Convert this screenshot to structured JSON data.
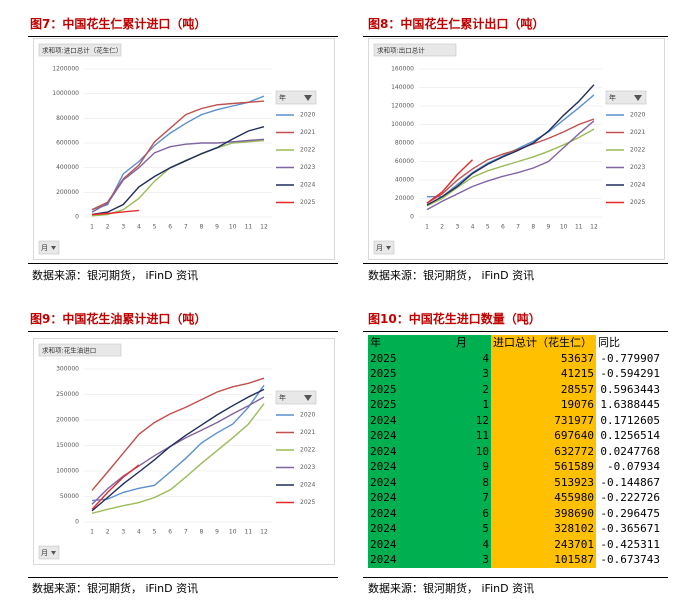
{
  "chart_data": [
    {
      "type": "line",
      "title": "图7：中国花生仁累计进口（吨）",
      "pivot_label": "求和项:进口总计（花生仁）",
      "legend_title": "年",
      "x_filter": "月",
      "source": "数据来源：银河期货， iFinD 资讯",
      "categories": [
        "1",
        "2",
        "3",
        "4",
        "5",
        "6",
        "7",
        "8",
        "9",
        "10",
        "11",
        "12"
      ],
      "ylim": [
        0,
        1200000
      ],
      "yticks": [
        0,
        200000,
        400000,
        600000,
        800000,
        1000000,
        1200000
      ],
      "series": [
        {
          "name": "2020",
          "color": "#5b8fd0",
          "values": [
            60000,
            100000,
            350000,
            450000,
            580000,
            680000,
            760000,
            830000,
            870000,
            900000,
            930000,
            980000
          ]
        },
        {
          "name": "2021",
          "color": "#c0504d",
          "values": [
            60000,
            120000,
            310000,
            420000,
            610000,
            720000,
            830000,
            880000,
            910000,
            920000,
            930000,
            940000
          ]
        },
        {
          "name": "2022",
          "color": "#9bbb59",
          "values": [
            10000,
            20000,
            60000,
            150000,
            290000,
            400000,
            460000,
            510000,
            560000,
            600000,
            610000,
            620000
          ]
        },
        {
          "name": "2023",
          "color": "#8064a2",
          "values": [
            40000,
            110000,
            300000,
            400000,
            520000,
            570000,
            590000,
            600000,
            600000,
            610000,
            620000,
            630000
          ]
        },
        {
          "name": "2024",
          "color": "#1f2d5c",
          "values": [
            20000,
            40000,
            101587,
            243701,
            328102,
            398690,
            455980,
            513923,
            561589,
            632772,
            697640,
            731977
          ]
        },
        {
          "name": "2025",
          "color": "#e8282b",
          "values": [
            19076,
            28557,
            41215,
            53637,
            null,
            null,
            null,
            null,
            null,
            null,
            null,
            null
          ]
        }
      ]
    },
    {
      "type": "line",
      "title": "图8：中国花生仁累计出口（吨）",
      "pivot_label": "求和项:出口总计",
      "legend_title": "年",
      "x_filter": "月",
      "source": "数据来源：银河期货， iFinD 资讯",
      "categories": [
        "1",
        "2",
        "3",
        "4",
        "5",
        "6",
        "7",
        "8",
        "9",
        "10",
        "11",
        "12"
      ],
      "ylim": [
        0,
        160000
      ],
      "yticks": [
        0,
        20000,
        40000,
        60000,
        80000,
        100000,
        120000,
        140000,
        160000
      ],
      "series": [
        {
          "name": "2020",
          "color": "#5b8fd0",
          "values": [
            22000,
            22000,
            35000,
            48000,
            58000,
            66000,
            74000,
            82000,
            92000,
            105000,
            118000,
            132000
          ]
        },
        {
          "name": "2021",
          "color": "#c0504d",
          "values": [
            15000,
            25000,
            40000,
            52000,
            62000,
            68000,
            73000,
            79000,
            85000,
            92000,
            100000,
            106000
          ]
        },
        {
          "name": "2022",
          "color": "#9bbb59",
          "values": [
            12000,
            20000,
            32000,
            43000,
            50000,
            55000,
            60000,
            65000,
            71000,
            78000,
            86000,
            95000
          ]
        },
        {
          "name": "2023",
          "color": "#8064a2",
          "values": [
            8000,
            17000,
            25000,
            33000,
            39000,
            44000,
            48000,
            53000,
            60000,
            75000,
            90000,
            104000
          ]
        },
        {
          "name": "2024",
          "color": "#1f2d5c",
          "values": [
            13000,
            22000,
            33000,
            47000,
            57000,
            65000,
            72000,
            80000,
            93000,
            110000,
            125000,
            143000
          ]
        },
        {
          "name": "2025",
          "color": "#e8282b",
          "values": [
            15000,
            27000,
            46000,
            62000,
            null,
            null,
            null,
            null,
            null,
            null,
            null,
            null
          ]
        }
      ]
    },
    {
      "type": "line",
      "title": "图9：中国花生油累计进口（吨）",
      "pivot_label": "求和项:花生油进口",
      "legend_title": "年",
      "x_filter": "月",
      "source": "数据来源：银河期货， iFinD 资讯",
      "categories": [
        "1",
        "2",
        "3",
        "4",
        "5",
        "6",
        "7",
        "8",
        "9",
        "10",
        "11",
        "12"
      ],
      "ylim": [
        0,
        300000
      ],
      "yticks": [
        0,
        50000,
        100000,
        150000,
        200000,
        250000,
        300000
      ],
      "series": [
        {
          "name": "2020",
          "color": "#5b8fd0",
          "values": [
            42000,
            45000,
            58000,
            66000,
            72000,
            98000,
            125000,
            155000,
            175000,
            192000,
            225000,
            268000
          ]
        },
        {
          "name": "2021",
          "color": "#c0504d",
          "values": [
            62000,
            98000,
            135000,
            172000,
            195000,
            212000,
            225000,
            240000,
            255000,
            265000,
            272000,
            282000
          ]
        },
        {
          "name": "2022",
          "color": "#9bbb59",
          "values": [
            17000,
            25000,
            32000,
            38000,
            48000,
            63000,
            88000,
            115000,
            140000,
            165000,
            192000,
            232000
          ]
        },
        {
          "name": "2023",
          "color": "#8064a2",
          "values": [
            35000,
            65000,
            90000,
            110000,
            130000,
            148000,
            165000,
            180000,
            195000,
            212000,
            228000,
            245000
          ]
        },
        {
          "name": "2024",
          "color": "#1f2d5c",
          "values": [
            22000,
            48000,
            75000,
            98000,
            122000,
            148000,
            170000,
            190000,
            210000,
            228000,
            245000,
            260000
          ]
        },
        {
          "name": "2025",
          "color": "#e8282b",
          "values": [
            25000,
            58000,
            88000,
            112000,
            null,
            null,
            null,
            null,
            null,
            null,
            null,
            null
          ]
        }
      ]
    }
  ],
  "table": {
    "title": "图10：中国花生进口数量（吨）",
    "source": "数据来源：银河期货， iFinD 资讯",
    "header": [
      "年",
      "月",
      "进口总计（花生仁）",
      "同比"
    ],
    "rows": [
      [
        "2025",
        "4",
        "53637",
        "-0.779907"
      ],
      [
        "2025",
        "3",
        "41215",
        "-0.594291"
      ],
      [
        "2025",
        "2",
        "28557",
        "0.5963443"
      ],
      [
        "2025",
        "1",
        "19076",
        "1.6388445"
      ],
      [
        "2024",
        "12",
        "731977",
        "0.1712605"
      ],
      [
        "2024",
        "11",
        "697640",
        "0.1256514"
      ],
      [
        "2024",
        "10",
        "632772",
        "0.0247768"
      ],
      [
        "2024",
        "9",
        "561589",
        "-0.07934"
      ],
      [
        "2024",
        "8",
        "513923",
        "-0.144867"
      ],
      [
        "2024",
        "7",
        "455980",
        "-0.222726"
      ],
      [
        "2024",
        "6",
        "398690",
        "-0.296475"
      ],
      [
        "2024",
        "5",
        "328102",
        "-0.365671"
      ],
      [
        "2024",
        "4",
        "243701",
        "-0.425311"
      ],
      [
        "2024",
        "3",
        "101587",
        "-0.673743"
      ]
    ]
  }
}
